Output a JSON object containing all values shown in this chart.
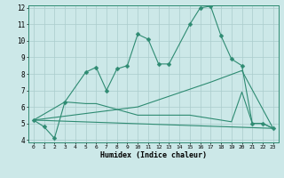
{
  "xlabel": "Humidex (Indice chaleur)",
  "line_color": "#2e8b72",
  "bg_color": "#cce8e8",
  "grid_color": "#aacccc",
  "ylim": [
    4,
    12
  ],
  "xlim": [
    -0.5,
    23.5
  ],
  "yticks": [
    4,
    5,
    6,
    7,
    8,
    9,
    10,
    11,
    12
  ],
  "xticks": [
    0,
    1,
    2,
    3,
    4,
    5,
    6,
    7,
    8,
    9,
    10,
    11,
    12,
    13,
    14,
    15,
    16,
    17,
    18,
    19,
    20,
    21,
    22,
    23
  ],
  "main_x": [
    0,
    1,
    2,
    3,
    5,
    6,
    7,
    8,
    9,
    10,
    11,
    12,
    13,
    15,
    16,
    17,
    18,
    19,
    20,
    21,
    22,
    23
  ],
  "main_y": [
    5.2,
    4.8,
    4.1,
    6.3,
    8.1,
    8.4,
    7.0,
    8.3,
    8.5,
    10.4,
    10.1,
    8.6,
    8.6,
    11.0,
    12.0,
    12.1,
    10.3,
    8.9,
    8.5,
    5.0,
    5.0,
    4.7
  ],
  "line2_x": [
    0,
    3,
    5,
    6,
    10,
    11,
    13,
    15,
    19,
    20,
    21,
    22,
    23
  ],
  "line2_y": [
    5.2,
    6.3,
    6.2,
    6.2,
    5.5,
    5.5,
    5.5,
    5.5,
    5.1,
    6.9,
    5.0,
    5.0,
    4.7
  ],
  "line3_x": [
    0,
    10,
    17,
    20,
    23
  ],
  "line3_y": [
    5.2,
    6.0,
    7.5,
    8.2,
    4.7
  ],
  "line4_x": [
    0,
    23
  ],
  "line4_y": [
    5.2,
    4.7
  ]
}
